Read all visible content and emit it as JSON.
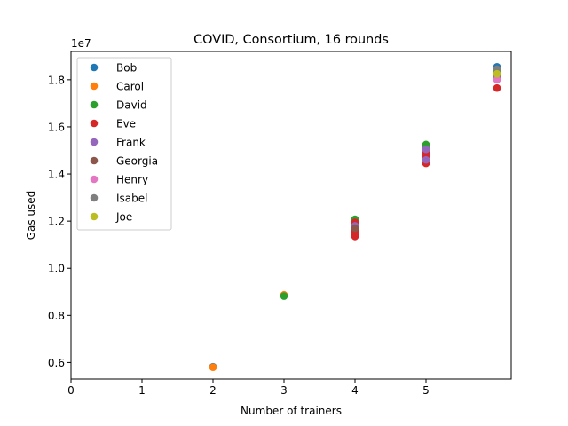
{
  "chart_data": {
    "type": "scatter",
    "title": "COVID, Consortium, 16 rounds",
    "xlabel": "Number of trainers",
    "ylabel": "Gas used",
    "y_multiplier": "1e7",
    "xlim": [
      0,
      6.2
    ],
    "ylim": [
      5.3,
      19.2
    ],
    "y_scale": 10000000,
    "xticks": [
      0,
      1,
      2,
      3,
      4,
      5
    ],
    "xtick_labels": [
      "0",
      "1",
      "2",
      "3",
      "4",
      "5"
    ],
    "yticks": [
      6,
      8,
      10,
      12,
      14,
      16,
      18
    ],
    "ytick_labels": [
      "0.6",
      "0.8",
      "1.0",
      "1.2",
      "1.4",
      "1.6",
      "1.8"
    ],
    "grid": false,
    "legend_position": "top-left",
    "series": [
      {
        "name": "Bob",
        "color": "#1f77b4",
        "points": [
          [
            2,
            5.82
          ],
          [
            6,
            18.55
          ],
          [
            6,
            18.4
          ]
        ]
      },
      {
        "name": "Carol",
        "color": "#ff7f0e",
        "points": [
          [
            2,
            5.8
          ],
          [
            3,
            8.87
          ],
          [
            5,
            14.85
          ],
          [
            6,
            18.3
          ]
        ]
      },
      {
        "name": "David",
        "color": "#2ca02c",
        "points": [
          [
            3,
            8.82
          ],
          [
            4,
            12.08
          ],
          [
            4,
            11.95
          ],
          [
            5,
            15.25
          ],
          [
            5,
            15.15
          ],
          [
            6,
            18.35
          ]
        ]
      },
      {
        "name": "Eve",
        "color": "#d62728",
        "points": [
          [
            4,
            11.95
          ],
          [
            4,
            11.85
          ],
          [
            4,
            11.75
          ],
          [
            4,
            11.65
          ],
          [
            4,
            11.55
          ],
          [
            4,
            11.45
          ],
          [
            4,
            11.35
          ],
          [
            5,
            14.9
          ],
          [
            5,
            14.75
          ],
          [
            5,
            14.45
          ],
          [
            6,
            17.65
          ]
        ]
      },
      {
        "name": "Frank",
        "color": "#9467bd",
        "points": [
          [
            4,
            11.8
          ],
          [
            5,
            15.05
          ],
          [
            5,
            14.6
          ],
          [
            6,
            18.05
          ]
        ]
      },
      {
        "name": "Georgia",
        "color": "#8c564b",
        "points": [
          [
            4,
            11.7
          ],
          [
            6,
            18.2
          ]
        ]
      },
      {
        "name": "Henry",
        "color": "#e377c2",
        "points": [
          [
            6,
            18.0
          ]
        ]
      },
      {
        "name": "Isabel",
        "color": "#7f7f7f",
        "points": [
          [
            6,
            18.45
          ]
        ]
      },
      {
        "name": "Joe",
        "color": "#bcbd22",
        "points": [
          [
            6,
            18.25
          ]
        ]
      }
    ]
  }
}
